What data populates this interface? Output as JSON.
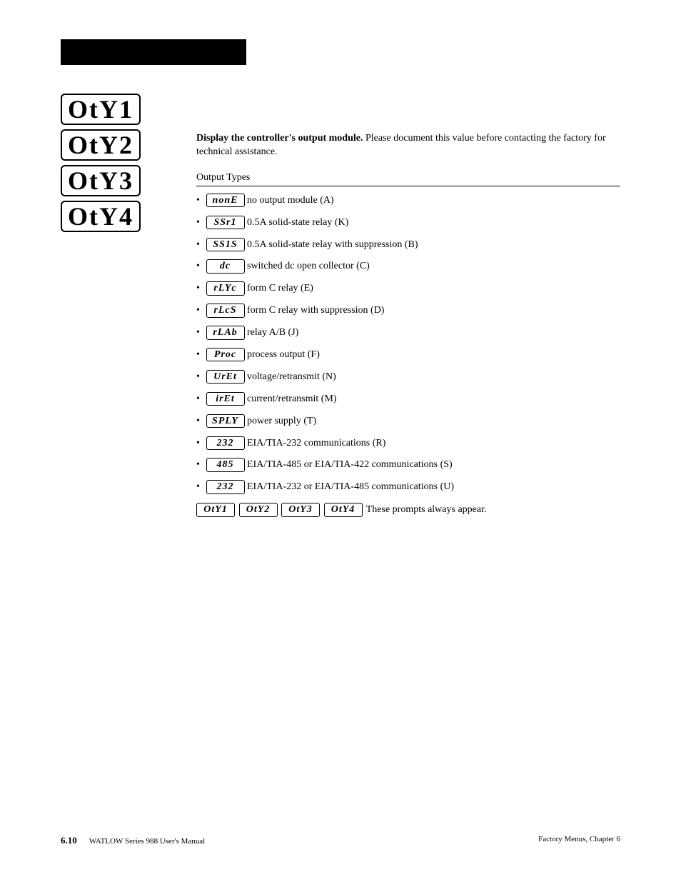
{
  "big_prompts": [
    "OtY1",
    "OtY2",
    "OtY3",
    "OtY4"
  ],
  "intro_bold": "Display the controller's output module.",
  "intro_rest": " Please document this value before contacting the factory for technical assistance.",
  "section_title": "Output Types",
  "items": [
    {
      "code": "nonE",
      "desc": " no output module (A)"
    },
    {
      "code": "SSr1",
      "desc": " 0.5A solid-state relay (K)"
    },
    {
      "code": "SS1S",
      "desc": " 0.5A solid-state relay with suppression (B)"
    },
    {
      "code": "  dc",
      "desc": " switched dc open collector (C)"
    },
    {
      "code": "rLYc",
      "desc": " form C relay (E)"
    },
    {
      "code": "rLcS",
      "desc": " form C relay with suppression (D)"
    },
    {
      "code": "rLAb",
      "desc": " relay A/B (J)"
    },
    {
      "code": "Proc",
      "desc": " process output (F)"
    },
    {
      "code": "UrEt",
      "desc": " voltage/retransmit (N)"
    },
    {
      "code": "irEt",
      "desc": " current/retransmit (M)"
    },
    {
      "code": "SPLY",
      "desc": " power supply (T)"
    },
    {
      "code": " 232",
      "desc": " EIA/TIA-232 communications (R)"
    },
    {
      "code": " 485",
      "desc": " EIA/TIA-485 or EIA/TIA-422 communications (S)"
    },
    {
      "code": " 232",
      "desc": " EIA/TIA-232 or EIA/TIA-485 communications (U)"
    }
  ],
  "always_codes": [
    "OtY1",
    "OtY2",
    "OtY3",
    "OtY4"
  ],
  "always_text": " These prompts always appear.",
  "footer": {
    "page": "6.10",
    "left": "WATLOW Series 988 User's Manual",
    "right": "Factory Menus, Chapter 6"
  }
}
